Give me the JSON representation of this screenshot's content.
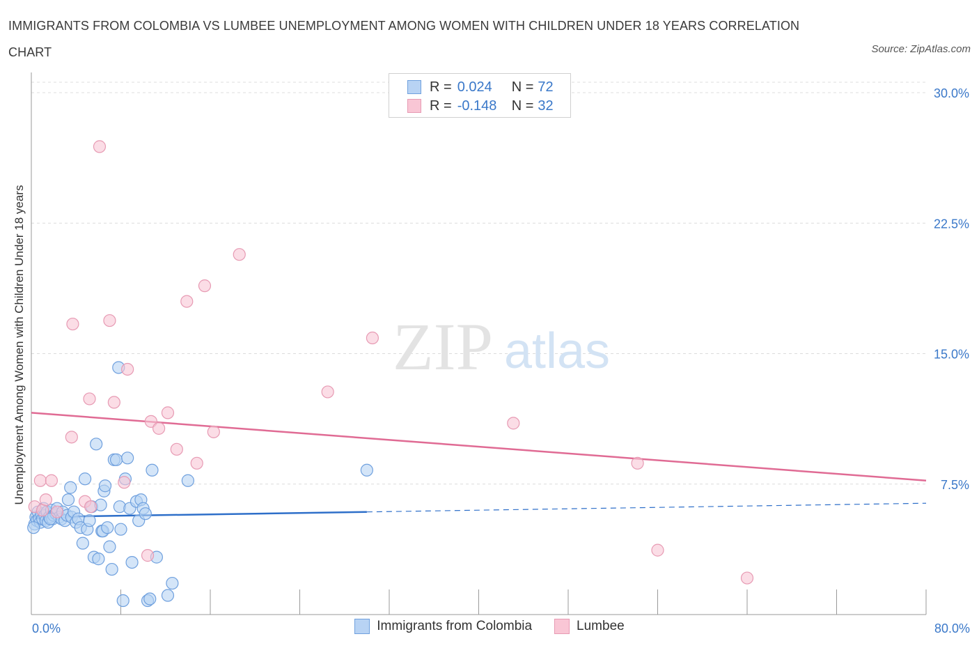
{
  "title": "IMMIGRANTS FROM COLOMBIA VS LUMBEE UNEMPLOYMENT AMONG WOMEN WITH CHILDREN UNDER 18 YEARS CORRELATION CHART",
  "source": "Source: ZipAtlas.com",
  "watermark": {
    "zip": "ZIP",
    "atlas": "atlas"
  },
  "legend": {
    "r_label": "R =",
    "n_label": "N =",
    "rows": [
      {
        "r": "0.024",
        "n": "72",
        "fill": "#b8d3f4",
        "stroke": "#6fa0de"
      },
      {
        "r": "-0.148",
        "n": "32",
        "fill": "#f9c6d5",
        "stroke": "#e79ab3"
      }
    ]
  },
  "bottom_legend": [
    "Immigrants from Colombia",
    "Lumbee"
  ],
  "colors": {
    "blue_fill": "#b8d3f4",
    "blue_stroke": "#6fa0de",
    "blue_line": "#2e6fc9",
    "pink_fill": "#f9c6d5",
    "pink_stroke": "#e79ab3",
    "pink_line": "#e06b94",
    "tick_label": "#3a78c9",
    "grid": "#dcdcdc"
  },
  "chart_data": {
    "type": "scatter",
    "title": "IMMIGRANTS FROM COLOMBIA VS LUMBEE UNEMPLOYMENT AMONG WOMEN WITH CHILDREN UNDER 18 YEARS CORRELATION CHART",
    "xlabel": "",
    "ylabel": "Unemployment Among Women with Children Under 18 years",
    "xlim": [
      0,
      80
    ],
    "ylim": [
      0,
      30
    ],
    "x_tick_labels": [
      "0.0%",
      "80.0%"
    ],
    "y_ticks": [
      7.5,
      15.0,
      22.5,
      30.0
    ],
    "y_tick_labels": [
      "7.5%",
      "15.0%",
      "22.5%",
      "30.0%"
    ],
    "grid": "horizontal dashed",
    "legend_position": "top-center",
    "series": [
      {
        "name": "Immigrants from Colombia",
        "r": 0.024,
        "n": 72,
        "trend": {
          "x": [
            0,
            30
          ],
          "y": [
            5.6,
            5.9
          ],
          "dashed_to": [
            80,
            6.4
          ]
        },
        "points": [
          [
            0.3,
            5.2
          ],
          [
            0.4,
            5.6
          ],
          [
            0.5,
            5.4
          ],
          [
            0.6,
            5.9
          ],
          [
            0.7,
            5.5
          ],
          [
            0.8,
            5.3
          ],
          [
            0.9,
            5.8
          ],
          [
            1.0,
            5.5
          ],
          [
            1.1,
            6.1
          ],
          [
            1.2,
            5.7
          ],
          [
            1.3,
            5.4
          ],
          [
            1.4,
            5.9
          ],
          [
            1.5,
            5.3
          ],
          [
            1.6,
            5.6
          ],
          [
            1.8,
            6.0
          ],
          [
            1.9,
            5.5
          ],
          [
            2.0,
            5.7
          ],
          [
            2.2,
            5.8
          ],
          [
            2.3,
            6.1
          ],
          [
            2.5,
            5.6
          ],
          [
            2.7,
            5.5
          ],
          [
            2.8,
            5.9
          ],
          [
            3.0,
            5.4
          ],
          [
            3.2,
            5.7
          ],
          [
            3.3,
            6.6
          ],
          [
            3.5,
            7.3
          ],
          [
            3.6,
            5.6
          ],
          [
            3.8,
            5.9
          ],
          [
            4.0,
            5.3
          ],
          [
            4.2,
            5.5
          ],
          [
            4.4,
            5.0
          ],
          [
            4.6,
            4.1
          ],
          [
            4.8,
            7.8
          ],
          [
            5.0,
            4.9
          ],
          [
            5.2,
            5.4
          ],
          [
            5.4,
            6.2
          ],
          [
            5.6,
            3.3
          ],
          [
            5.8,
            9.8
          ],
          [
            6.0,
            3.2
          ],
          [
            6.2,
            6.3
          ],
          [
            6.3,
            4.8
          ],
          [
            6.4,
            4.8
          ],
          [
            6.5,
            7.1
          ],
          [
            6.6,
            7.4
          ],
          [
            6.8,
            5.0
          ],
          [
            7.0,
            3.9
          ],
          [
            7.2,
            2.6
          ],
          [
            7.4,
            8.9
          ],
          [
            7.6,
            8.9
          ],
          [
            7.8,
            14.2
          ],
          [
            7.9,
            6.2
          ],
          [
            8.0,
            4.9
          ],
          [
            8.2,
            0.8
          ],
          [
            8.4,
            7.8
          ],
          [
            8.6,
            9.0
          ],
          [
            8.8,
            6.1
          ],
          [
            9.0,
            3.0
          ],
          [
            9.4,
            6.5
          ],
          [
            9.6,
            5.4
          ],
          [
            9.8,
            6.6
          ],
          [
            10.0,
            6.1
          ],
          [
            10.2,
            5.8
          ],
          [
            10.4,
            0.8
          ],
          [
            10.6,
            0.9
          ],
          [
            10.8,
            8.3
          ],
          [
            11.2,
            3.3
          ],
          [
            12.2,
            1.1
          ],
          [
            12.6,
            1.8
          ],
          [
            14.0,
            7.7
          ],
          [
            30.0,
            8.3
          ],
          [
            0.2,
            5.0
          ],
          [
            1.7,
            5.5
          ]
        ]
      },
      {
        "name": "Lumbee",
        "r": -0.148,
        "n": 32,
        "trend": {
          "x": [
            0,
            80
          ],
          "y": [
            11.6,
            7.7
          ]
        },
        "points": [
          [
            0.3,
            6.2
          ],
          [
            0.8,
            7.7
          ],
          [
            1.0,
            6.0
          ],
          [
            1.3,
            6.6
          ],
          [
            1.8,
            7.7
          ],
          [
            2.3,
            5.9
          ],
          [
            3.6,
            10.2
          ],
          [
            3.7,
            16.7
          ],
          [
            4.8,
            6.5
          ],
          [
            5.3,
            6.2
          ],
          [
            5.2,
            12.4
          ],
          [
            6.1,
            26.9
          ],
          [
            7.0,
            16.9
          ],
          [
            7.4,
            12.2
          ],
          [
            8.3,
            7.6
          ],
          [
            8.6,
            14.1
          ],
          [
            10.4,
            3.4
          ],
          [
            10.7,
            11.1
          ],
          [
            11.4,
            10.7
          ],
          [
            12.2,
            11.6
          ],
          [
            13.0,
            9.5
          ],
          [
            13.9,
            18.0
          ],
          [
            14.8,
            8.7
          ],
          [
            15.5,
            18.9
          ],
          [
            16.3,
            10.5
          ],
          [
            18.6,
            20.7
          ],
          [
            26.5,
            12.8
          ],
          [
            30.5,
            15.9
          ],
          [
            43.1,
            11.0
          ],
          [
            54.2,
            8.7
          ],
          [
            56.0,
            3.7
          ],
          [
            64.0,
            2.1
          ]
        ]
      }
    ]
  }
}
